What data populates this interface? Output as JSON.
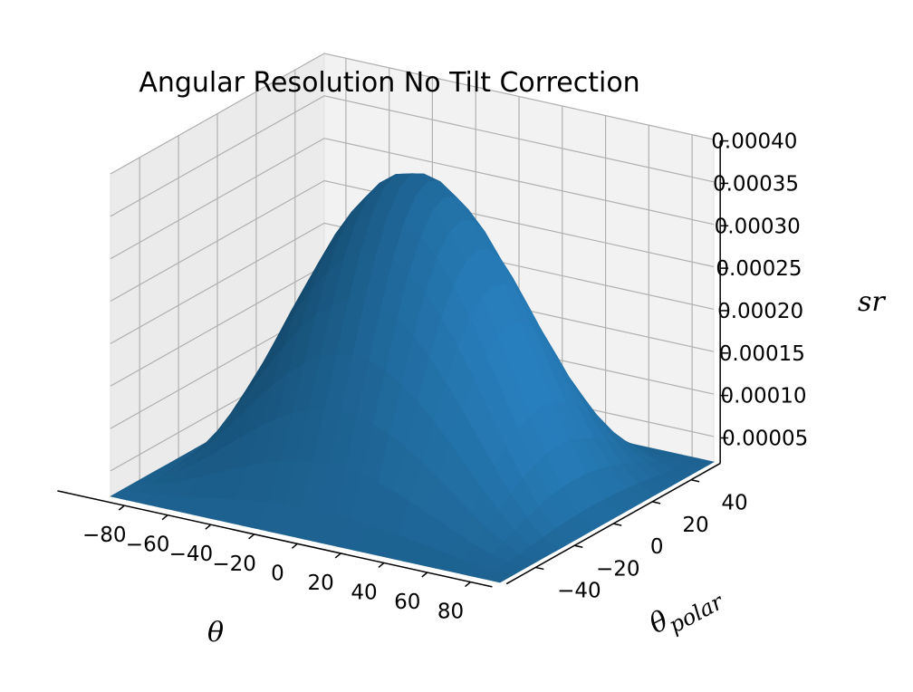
{
  "chart_data": {
    "type": "surface",
    "title": "Angular Resolution No Tilt Correction",
    "xlabel": "θ",
    "ylabel": "θpolar",
    "ylabel_base": "θ",
    "ylabel_sub": "polar",
    "zlabel": "sr",
    "x_ticks": [
      "−80",
      "−60",
      "−40",
      "−20",
      "0",
      "20",
      "40",
      "60",
      "80"
    ],
    "x_tick_values": [
      -80,
      -60,
      -40,
      -20,
      0,
      20,
      40,
      60,
      80
    ],
    "y_ticks": [
      "−40",
      "−20",
      "0",
      "20",
      "40"
    ],
    "y_tick_values": [
      -40,
      -20,
      0,
      20,
      40
    ],
    "z_ticks": [
      "0.00005",
      "0.00010",
      "0.00015",
      "0.00020",
      "0.00025",
      "0.00030",
      "0.00035",
      "0.00040"
    ],
    "z_tick_values": [
      5e-05,
      0.0001,
      0.00015,
      0.0002,
      0.00025,
      0.0003,
      0.00035,
      0.0004
    ],
    "xlim": [
      -90,
      90
    ],
    "ylim": [
      -55,
      55
    ],
    "zlim": [
      2e-05,
      0.0004
    ],
    "surface": {
      "peak_value": 0.00038,
      "peak_at": [
        0,
        0
      ],
      "corner_value": 2e-05,
      "shape": "peaked dome falling toward all edges"
    },
    "colors": {
      "surface": "#1f77b4",
      "pane": "#f2f2f2",
      "grid": "#b0b0b0"
    }
  }
}
